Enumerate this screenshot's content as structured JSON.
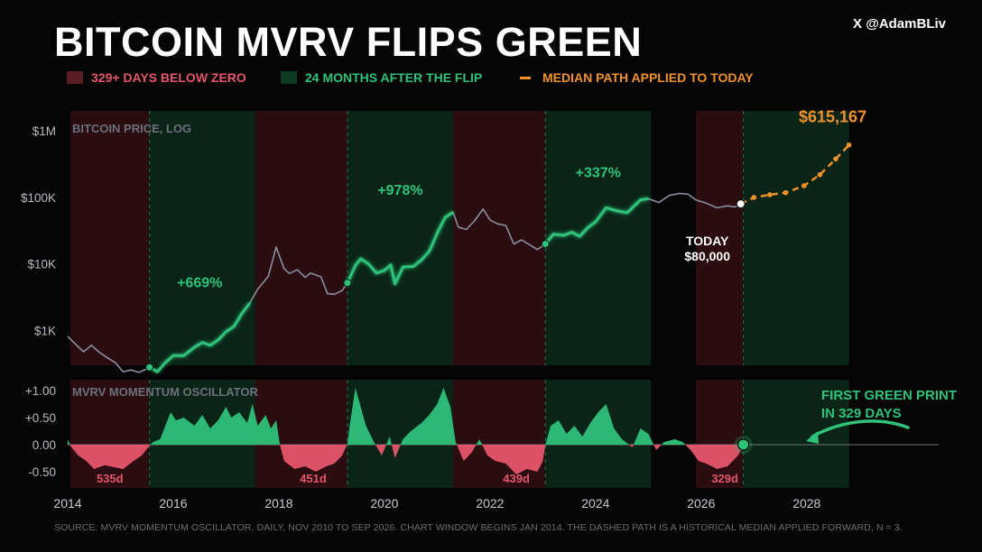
{
  "title": "BITCOIN MVRV FLIPS GREEN",
  "handle": "X @AdamBLiv",
  "legend": [
    {
      "label": "329+ DAYS BELOW ZERO",
      "color": "#e5566b",
      "swatch": "#5b1d24",
      "kind": "box"
    },
    {
      "label": "24 MONTHS AFTER THE FLIP",
      "color": "#2fc27a",
      "swatch": "#0f3b26",
      "kind": "box"
    },
    {
      "label": "MEDIAN PATH APPLIED TO TODAY",
      "color": "#f0922b",
      "swatch": "#f0922b",
      "kind": "dash"
    }
  ],
  "source": "SOURCE: MVRV MOMENTUM OSCILLATOR, DAILY, NOV 2010 TO SEP 2026.  CHART WINDOW BEGINS JAN 2014.  THE DASHED PATH IS A HISTORICAL MEDIAN APPLIED FORWARD, N = 3.",
  "colors": {
    "red": "#e5566b",
    "green": "#2fc27a",
    "orange": "#f0922b",
    "grey": "#8a8f9c",
    "bg": "#050505"
  },
  "chart_data": [
    {
      "type": "line",
      "panel_label": "BITCOIN PRICE, LOG",
      "y_scale": "log",
      "ylim": [
        300,
        2000000
      ],
      "xlim": [
        2014.0,
        2030.5
      ],
      "yticks": [
        {
          "value": 1000,
          "label": "$1K"
        },
        {
          "value": 10000,
          "label": "$10K"
        },
        {
          "value": 100000,
          "label": "$100K"
        },
        {
          "value": 1000000,
          "label": "$1M"
        }
      ],
      "xticks": [
        "2014",
        "2016",
        "2018",
        "2020",
        "2022",
        "2024",
        "2026",
        "2028"
      ],
      "red_zones": [
        [
          2014.05,
          2015.55
        ],
        [
          2017.05,
          2019.3
        ],
        [
          2021.05,
          2023.05
        ],
        [
          2025.9,
          2026.8
        ]
      ],
      "green_zones": [
        [
          2015.55,
          2017.55
        ],
        [
          2019.3,
          2021.3
        ],
        [
          2023.05,
          2025.05
        ],
        [
          2026.8,
          2028.8
        ]
      ],
      "price_series": [
        [
          2014.0,
          820
        ],
        [
          2014.15,
          620
        ],
        [
          2014.3,
          480
        ],
        [
          2014.45,
          600
        ],
        [
          2014.6,
          470
        ],
        [
          2014.75,
          390
        ],
        [
          2014.9,
          330
        ],
        [
          2015.05,
          240
        ],
        [
          2015.2,
          255
        ],
        [
          2015.35,
          235
        ],
        [
          2015.5,
          265
        ],
        [
          2015.55,
          280
        ],
        [
          2015.7,
          240
        ],
        [
          2015.85,
          330
        ],
        [
          2016.0,
          420
        ],
        [
          2016.2,
          420
        ],
        [
          2016.4,
          560
        ],
        [
          2016.55,
          660
        ],
        [
          2016.7,
          600
        ],
        [
          2016.85,
          720
        ],
        [
          2017.0,
          960
        ],
        [
          2017.15,
          1150
        ],
        [
          2017.3,
          1800
        ],
        [
          2017.45,
          2600
        ],
        [
          2017.6,
          4200
        ],
        [
          2017.8,
          6500
        ],
        [
          2017.95,
          18000
        ],
        [
          2018.0,
          14000
        ],
        [
          2018.1,
          8500
        ],
        [
          2018.2,
          7200
        ],
        [
          2018.35,
          8200
        ],
        [
          2018.5,
          6300
        ],
        [
          2018.6,
          7300
        ],
        [
          2018.8,
          6400
        ],
        [
          2018.92,
          3600
        ],
        [
          2019.05,
          3500
        ],
        [
          2019.2,
          4000
        ],
        [
          2019.3,
          5200
        ],
        [
          2019.45,
          9500
        ],
        [
          2019.55,
          12000
        ],
        [
          2019.7,
          10000
        ],
        [
          2019.85,
          7300
        ],
        [
          2020.0,
          8000
        ],
        [
          2020.12,
          9700
        ],
        [
          2020.2,
          5000
        ],
        [
          2020.35,
          9000
        ],
        [
          2020.55,
          9200
        ],
        [
          2020.7,
          11500
        ],
        [
          2020.85,
          15500
        ],
        [
          2021.0,
          29000
        ],
        [
          2021.15,
          50000
        ],
        [
          2021.3,
          60000
        ],
        [
          2021.4,
          36000
        ],
        [
          2021.55,
          33000
        ],
        [
          2021.7,
          44000
        ],
        [
          2021.87,
          67000
        ],
        [
          2022.0,
          46000
        ],
        [
          2022.15,
          40000
        ],
        [
          2022.3,
          38000
        ],
        [
          2022.45,
          20000
        ],
        [
          2022.6,
          23000
        ],
        [
          2022.75,
          19500
        ],
        [
          2022.9,
          16500
        ],
        [
          2023.05,
          20000
        ],
        [
          2023.2,
          28000
        ],
        [
          2023.4,
          27000
        ],
        [
          2023.55,
          30000
        ],
        [
          2023.7,
          26000
        ],
        [
          2023.85,
          35000
        ],
        [
          2024.0,
          43000
        ],
        [
          2024.2,
          70000
        ],
        [
          2024.4,
          63000
        ],
        [
          2024.6,
          59000
        ],
        [
          2024.85,
          92000
        ],
        [
          2025.0,
          96000
        ],
        [
          2025.2,
          84000
        ],
        [
          2025.4,
          108000
        ],
        [
          2025.6,
          115000
        ],
        [
          2025.75,
          112000
        ],
        [
          2025.9,
          92000
        ],
        [
          2026.1,
          82000
        ],
        [
          2026.3,
          70000
        ],
        [
          2026.5,
          75000
        ],
        [
          2026.65,
          72000
        ],
        [
          2026.75,
          80000
        ]
      ],
      "median_path": [
        [
          2026.75,
          80000
        ],
        [
          2027.0,
          100000
        ],
        [
          2027.3,
          110000
        ],
        [
          2027.6,
          118000
        ],
        [
          2027.95,
          150000
        ],
        [
          2028.25,
          220000
        ],
        [
          2028.55,
          380000
        ],
        [
          2028.8,
          615167
        ]
      ],
      "flip_points": [
        [
          2015.55,
          280
        ],
        [
          2019.3,
          5200
        ],
        [
          2023.05,
          20000
        ]
      ],
      "today_point": [
        2026.75,
        80000
      ],
      "annotations": [
        {
          "text": "+669%",
          "x": 2016.5,
          "y": 4500,
          "color": "#2fc27a"
        },
        {
          "text": "+978%",
          "x": 2020.3,
          "y": 110000,
          "color": "#2fc27a"
        },
        {
          "text": "+337%",
          "x": 2024.05,
          "y": 200000,
          "color": "#2fc27a"
        },
        {
          "text": "$615,167",
          "x": 2027.85,
          "y": 1350000,
          "color": "#f0922b"
        }
      ],
      "today_label": {
        "line1": "TODAY",
        "line2": "$80,000"
      }
    },
    {
      "type": "area",
      "panel_label": "MVRV MOMENTUM OSCILLATOR",
      "ylim": [
        -0.8,
        1.2
      ],
      "yticks": [
        {
          "value": 1.0,
          "label": "+1.00"
        },
        {
          "value": 0.5,
          "label": "+0.50"
        },
        {
          "value": 0.0,
          "label": "0.00"
        },
        {
          "value": -0.5,
          "label": "-0.50"
        }
      ],
      "oscillator_series": [
        [
          2014.0,
          0.1
        ],
        [
          2014.05,
          -0.02
        ],
        [
          2014.2,
          -0.2
        ],
        [
          2014.35,
          -0.3
        ],
        [
          2014.5,
          -0.45
        ],
        [
          2014.7,
          -0.38
        ],
        [
          2014.9,
          -0.42
        ],
        [
          2015.05,
          -0.45
        ],
        [
          2015.25,
          -0.3
        ],
        [
          2015.4,
          -0.2
        ],
        [
          2015.55,
          -0.02
        ],
        [
          2015.62,
          0.05
        ],
        [
          2015.75,
          0.1
        ],
        [
          2015.85,
          0.35
        ],
        [
          2015.95,
          0.6
        ],
        [
          2016.05,
          0.45
        ],
        [
          2016.2,
          0.5
        ],
        [
          2016.4,
          0.35
        ],
        [
          2016.55,
          0.55
        ],
        [
          2016.7,
          0.3
        ],
        [
          2016.85,
          0.45
        ],
        [
          2017.0,
          0.7
        ],
        [
          2017.1,
          0.5
        ],
        [
          2017.25,
          0.6
        ],
        [
          2017.4,
          0.4
        ],
        [
          2017.5,
          0.75
        ],
        [
          2017.6,
          0.35
        ],
        [
          2017.75,
          0.55
        ],
        [
          2017.85,
          0.3
        ],
        [
          2017.95,
          0.45
        ],
        [
          2018.02,
          0.0
        ],
        [
          2018.1,
          -0.3
        ],
        [
          2018.3,
          -0.45
        ],
        [
          2018.5,
          -0.4
        ],
        [
          2018.7,
          -0.5
        ],
        [
          2018.9,
          -0.4
        ],
        [
          2019.05,
          -0.35
        ],
        [
          2019.2,
          -0.2
        ],
        [
          2019.3,
          0.02
        ],
        [
          2019.35,
          0.4
        ],
        [
          2019.45,
          1.05
        ],
        [
          2019.55,
          0.7
        ],
        [
          2019.65,
          0.35
        ],
        [
          2019.8,
          0.05
        ],
        [
          2019.95,
          -0.2
        ],
        [
          2020.1,
          0.15
        ],
        [
          2020.2,
          -0.25
        ],
        [
          2020.35,
          0.1
        ],
        [
          2020.5,
          0.25
        ],
        [
          2020.7,
          0.4
        ],
        [
          2020.85,
          0.55
        ],
        [
          2021.0,
          0.75
        ],
        [
          2021.12,
          1.05
        ],
        [
          2021.25,
          0.7
        ],
        [
          2021.35,
          0.05
        ],
        [
          2021.5,
          -0.3
        ],
        [
          2021.65,
          -0.15
        ],
        [
          2021.8,
          0.1
        ],
        [
          2021.95,
          -0.2
        ],
        [
          2022.1,
          -0.3
        ],
        [
          2022.3,
          -0.35
        ],
        [
          2022.5,
          -0.55
        ],
        [
          2022.7,
          -0.45
        ],
        [
          2022.9,
          -0.5
        ],
        [
          2023.0,
          -0.3
        ],
        [
          2023.05,
          0.0
        ],
        [
          2023.15,
          0.35
        ],
        [
          2023.3,
          0.45
        ],
        [
          2023.45,
          0.2
        ],
        [
          2023.6,
          0.35
        ],
        [
          2023.75,
          0.15
        ],
        [
          2023.9,
          0.4
        ],
        [
          2024.05,
          0.6
        ],
        [
          2024.2,
          0.75
        ],
        [
          2024.35,
          0.3
        ],
        [
          2024.5,
          0.1
        ],
        [
          2024.7,
          -0.05
        ],
        [
          2024.85,
          0.3
        ],
        [
          2025.0,
          0.2
        ],
        [
          2025.15,
          -0.1
        ],
        [
          2025.3,
          0.05
        ],
        [
          2025.5,
          0.1
        ],
        [
          2025.65,
          0.05
        ],
        [
          2025.8,
          -0.1
        ],
        [
          2025.95,
          -0.3
        ],
        [
          2026.1,
          -0.35
        ],
        [
          2026.3,
          -0.45
        ],
        [
          2026.5,
          -0.4
        ],
        [
          2026.7,
          -0.2
        ],
        [
          2026.8,
          0.0
        ]
      ],
      "zone_labels": [
        {
          "text": "535d",
          "x": 2014.8
        },
        {
          "text": "451d",
          "x": 2018.65
        },
        {
          "text": "439d",
          "x": 2022.5
        },
        {
          "text": "329d",
          "x": 2026.45
        }
      ],
      "callout": {
        "line1": "FIRST GREEN PRINT",
        "line2": "IN 329 DAYS",
        "color": "#2fc27a"
      }
    }
  ]
}
